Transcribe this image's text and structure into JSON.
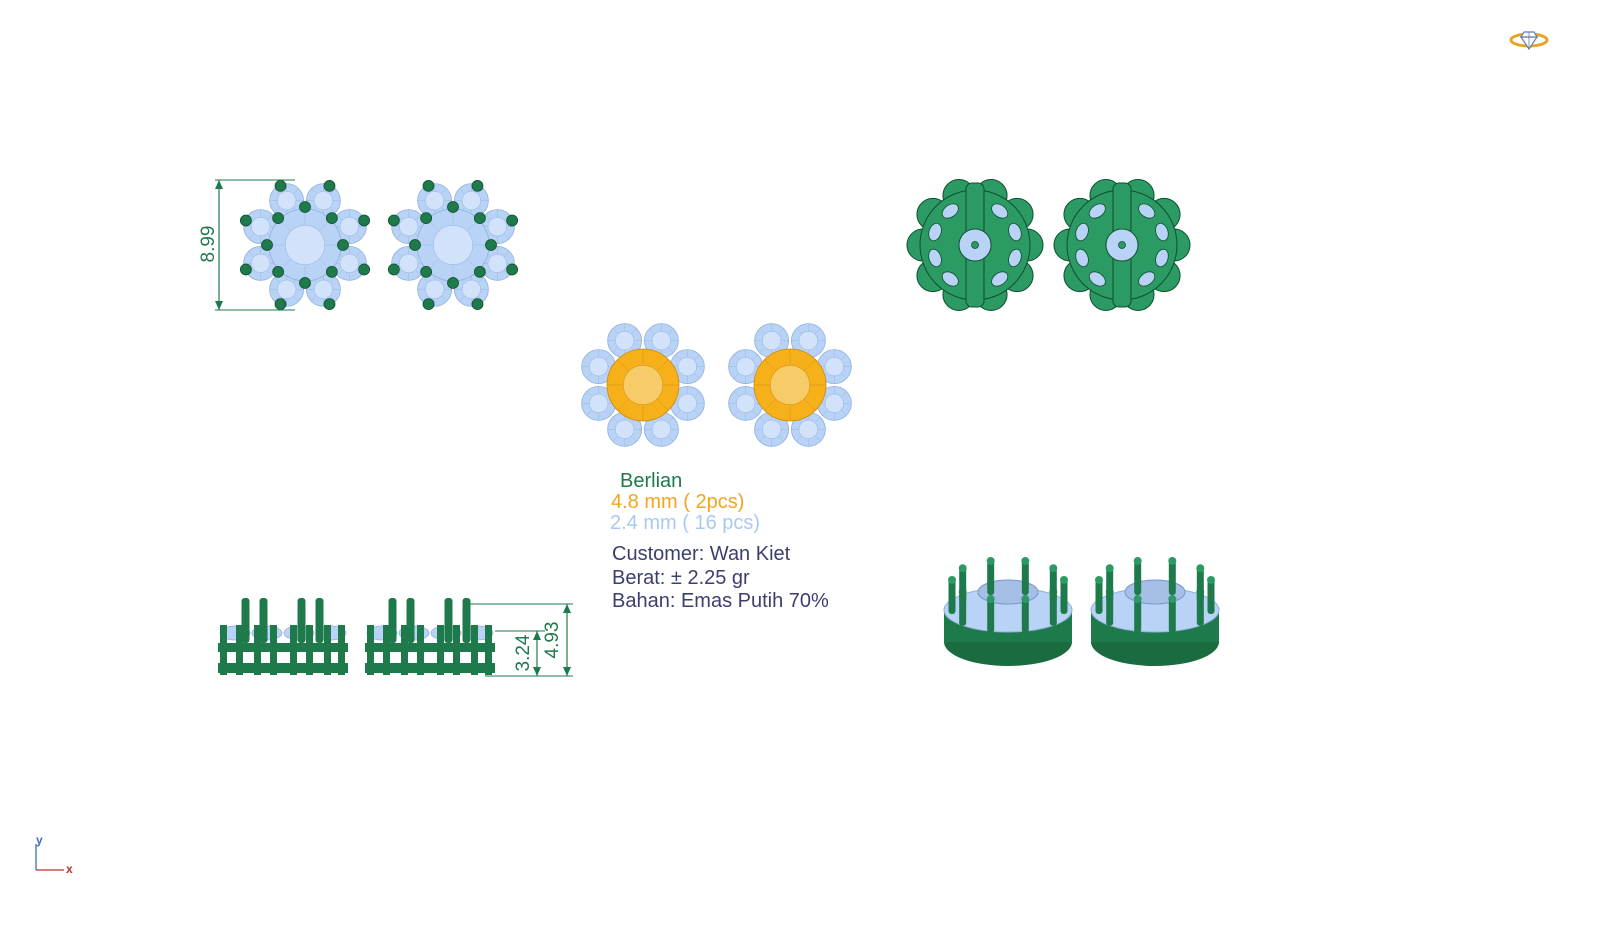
{
  "dimensions": {
    "width_label": "8.99",
    "height_total_label": "4.93",
    "height_partial_label": "3.24"
  },
  "spec": {
    "title": "Berlian",
    "stone_main": "4.8 mm ( 2pcs)",
    "stone_side": "2.4 mm ( 16 pcs)"
  },
  "info": {
    "customer": "Customer: Wan Kiet",
    "weight": "Berat: ± 2.25 gr",
    "material": "Bahan: Emas Putih 70%"
  },
  "axes": {
    "y": "y",
    "x": "x"
  },
  "colors": {
    "metal_green": "#1f7a4b",
    "diamond_blue": "#b9d3f7",
    "center_yellow": "#f5b01a",
    "title_green": "#1e7a4a",
    "main_orange": "#f2a51d",
    "side_blue": "#a9c9f3",
    "info_text": "#3c3f6e"
  }
}
